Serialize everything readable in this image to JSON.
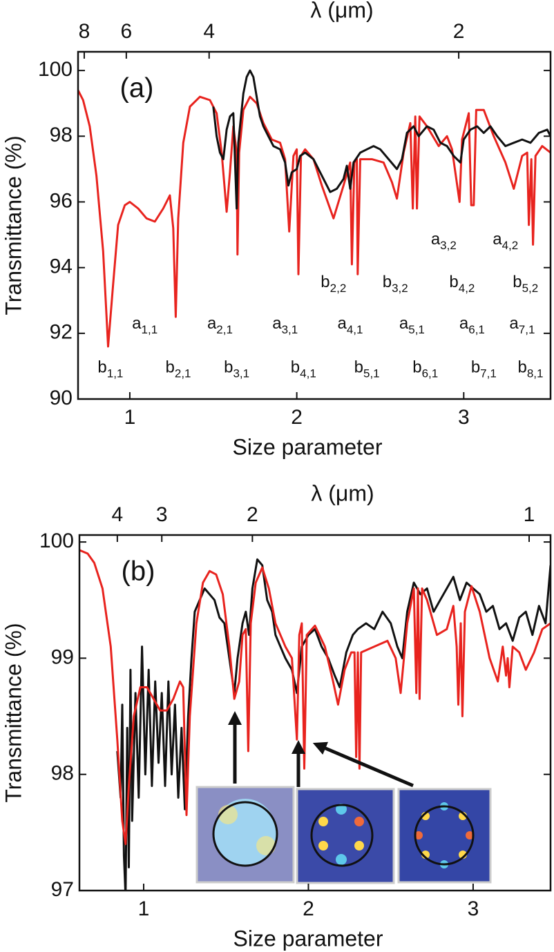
{
  "chart_data": [
    {
      "type": "line",
      "panel": "(a)",
      "xlabel": "Size parameter",
      "ylabel": "Transmittance (%)",
      "x2label": "λ (μm)",
      "xlim": [
        0.69,
        3.52
      ],
      "ylim": [
        90,
        100.57
      ],
      "xticks": [
        1,
        2,
        3
      ],
      "yticks": [
        90,
        92,
        94,
        96,
        98,
        100
      ],
      "x2ticks": [
        {
          "value": 0.727,
          "label": "8"
        },
        {
          "value": 0.979,
          "label": "6"
        },
        {
          "value": 1.475,
          "label": "4"
        },
        {
          "value": 2.97,
          "label": "2"
        }
      ],
      "series": [
        {
          "color": "#e8231e",
          "x": [
            0.69,
            0.72,
            0.76,
            0.8,
            0.84,
            0.87,
            0.9,
            0.93,
            0.97,
            1.0,
            1.05,
            1.1,
            1.15,
            1.2,
            1.24,
            1.26,
            1.275,
            1.29,
            1.32,
            1.36,
            1.42,
            1.48,
            1.52,
            1.55,
            1.58,
            1.6,
            1.62,
            1.64,
            1.645,
            1.655,
            1.68,
            1.72,
            1.76,
            1.8,
            1.85,
            1.9,
            1.93,
            1.955,
            1.98,
            2.0,
            2.01,
            2.025,
            2.05,
            2.1,
            2.15,
            2.22,
            2.28,
            2.32,
            2.33,
            2.345,
            2.36,
            2.365,
            2.38,
            2.45,
            2.52,
            2.57,
            2.6,
            2.64,
            2.68,
            2.695,
            2.71,
            2.72,
            2.735,
            2.78,
            2.85,
            2.9,
            2.93,
            2.975,
            2.99,
            3.03,
            3.045,
            3.06,
            3.075,
            3.12,
            3.18,
            3.25,
            3.3,
            3.35,
            3.38,
            3.39,
            3.405,
            3.415,
            3.43,
            3.47,
            3.52
          ],
          "values": [
            99.4,
            99.1,
            98.3,
            96.8,
            94.5,
            91.6,
            93.5,
            95.3,
            95.9,
            96.0,
            95.8,
            95.5,
            95.4,
            95.8,
            96.2,
            95.2,
            92.5,
            95.5,
            97.8,
            98.9,
            99.2,
            99.1,
            98.7,
            97.5,
            95.7,
            96.9,
            98.3,
            97.5,
            94.4,
            97.5,
            98.8,
            99.2,
            99.0,
            98.4,
            97.9,
            97.8,
            97.3,
            95.1,
            97.4,
            97.6,
            93.8,
            97.4,
            97.6,
            97.3,
            96.5,
            95.5,
            96.5,
            97.2,
            94.1,
            97.2,
            97.3,
            93.8,
            97.3,
            97.3,
            97.2,
            96.6,
            96.1,
            97.5,
            98.4,
            95.8,
            98.6,
            95.8,
            98.6,
            98.3,
            97.7,
            98.0,
            97.6,
            96.0,
            97.9,
            98.7,
            95.9,
            95.9,
            98.8,
            98.8,
            98.0,
            97.2,
            96.4,
            97.4,
            97.5,
            95.3,
            97.3,
            94.7,
            97.4,
            97.7,
            97.5
          ]
        },
        {
          "color": "#111111",
          "x": [
            1.5,
            1.52,
            1.54,
            1.56,
            1.58,
            1.6,
            1.62,
            1.64,
            1.65,
            1.68,
            1.7,
            1.72,
            1.74,
            1.76,
            1.78,
            1.8,
            1.83,
            1.86,
            1.9,
            1.93,
            1.95,
            1.97,
            2.0,
            2.02,
            2.05,
            2.1,
            2.15,
            2.2,
            2.24,
            2.28,
            2.3,
            2.32,
            2.34,
            2.38,
            2.42,
            2.46,
            2.5,
            2.55,
            2.6,
            2.63,
            2.66,
            2.7,
            2.73,
            2.78,
            2.82,
            2.86,
            2.9,
            2.94,
            2.98,
            3.0,
            3.04,
            3.08,
            3.12,
            3.16,
            3.2,
            3.25,
            3.3,
            3.35,
            3.4,
            3.45,
            3.5,
            3.52
          ],
          "values": [
            98.9,
            98.0,
            97.5,
            97.3,
            98.2,
            98.6,
            98.7,
            95.8,
            97.8,
            99.3,
            99.8,
            100.0,
            99.8,
            99.2,
            98.6,
            98.3,
            98.0,
            97.7,
            97.6,
            97.2,
            96.5,
            96.9,
            97.0,
            97.4,
            97.5,
            97.3,
            96.8,
            96.3,
            96.4,
            96.7,
            97.1,
            96.4,
            97.2,
            97.5,
            97.6,
            97.7,
            97.6,
            97.3,
            97.0,
            97.3,
            98.1,
            98.3,
            98.0,
            98.3,
            98.2,
            97.8,
            97.7,
            97.4,
            97.2,
            97.9,
            98.2,
            98.3,
            98.1,
            98.3,
            98.0,
            97.7,
            97.8,
            97.9,
            97.8,
            98.1,
            98.2,
            98.0
          ]
        }
      ],
      "annotations": [
        {
          "text": "b",
          "sub": "1,1",
          "x": 0.884,
          "y": 90.93
        },
        {
          "text": "a",
          "sub": "1,1",
          "x": 1.09,
          "y": 92.27
        },
        {
          "text": "b",
          "sub": "2,1",
          "x": 1.29,
          "y": 90.93
        },
        {
          "text": "a",
          "sub": "2,1",
          "x": 1.54,
          "y": 92.27
        },
        {
          "text": "b",
          "sub": "3,1",
          "x": 1.64,
          "y": 90.93
        },
        {
          "text": "a",
          "sub": "3,1",
          "x": 1.93,
          "y": 92.27
        },
        {
          "text": "b",
          "sub": "4,1",
          "x": 2.04,
          "y": 90.93
        },
        {
          "text": "a",
          "sub": "4,1",
          "x": 2.32,
          "y": 92.27
        },
        {
          "text": "b",
          "sub": "5,1",
          "x": 2.42,
          "y": 90.93
        },
        {
          "text": "a",
          "sub": "5,1",
          "x": 2.69,
          "y": 92.27
        },
        {
          "text": "b",
          "sub": "6,1",
          "x": 2.77,
          "y": 90.93
        },
        {
          "text": "a",
          "sub": "6,1",
          "x": 3.05,
          "y": 92.27
        },
        {
          "text": "b",
          "sub": "7,1",
          "x": 3.12,
          "y": 90.93
        },
        {
          "text": "a",
          "sub": "7,1",
          "x": 3.35,
          "y": 92.27
        },
        {
          "text": "b",
          "sub": "8,1",
          "x": 3.4,
          "y": 90.93
        },
        {
          "text": "b",
          "sub": "2,2",
          "x": 2.22,
          "y": 93.53
        },
        {
          "text": "b",
          "sub": "3,2",
          "x": 2.59,
          "y": 93.53
        },
        {
          "text": "b",
          "sub": "4,2",
          "x": 2.99,
          "y": 93.53
        },
        {
          "text": "b",
          "sub": "5,2",
          "x": 3.37,
          "y": 93.53
        },
        {
          "text": "a",
          "sub": "3,2",
          "x": 2.88,
          "y": 94.83
        },
        {
          "text": "a",
          "sub": "4,2",
          "x": 3.25,
          "y": 94.83
        }
      ]
    },
    {
      "type": "line",
      "panel": "(b)",
      "xlabel": "Size parameter",
      "ylabel": "Transmittance (%)",
      "x2label": "λ (μm)",
      "xlim": [
        0.61,
        3.47
      ],
      "ylim": [
        97,
        100.06
      ],
      "xticks": [
        1,
        2,
        3
      ],
      "yticks": [
        97,
        98,
        99,
        100
      ],
      "x2ticks": [
        {
          "value": 0.84,
          "label": "4"
        },
        {
          "value": 1.11,
          "label": "3"
        },
        {
          "value": 1.66,
          "label": "2"
        },
        {
          "value": 3.34,
          "label": "1"
        }
      ],
      "series": [
        {
          "color": "#111111",
          "x": [
            0.84,
            0.86,
            0.87,
            0.88,
            0.89,
            0.9,
            0.91,
            0.92,
            0.93,
            0.95,
            0.97,
            0.99,
            1.01,
            1.03,
            1.05,
            1.07,
            1.09,
            1.11,
            1.13,
            1.15,
            1.17,
            1.19,
            1.21,
            1.23,
            1.25,
            1.27,
            1.29,
            1.31,
            1.34,
            1.37,
            1.4,
            1.43,
            1.46,
            1.49,
            1.52,
            1.55,
            1.57,
            1.6,
            1.62,
            1.64,
            1.66,
            1.69,
            1.72,
            1.75,
            1.78,
            1.8,
            1.83,
            1.86,
            1.9,
            1.93,
            1.96,
            2.0,
            2.04,
            2.08,
            2.12,
            2.16,
            2.19,
            2.23,
            2.27,
            2.3,
            2.35,
            2.4,
            2.45,
            2.5,
            2.54,
            2.57,
            2.6,
            2.64,
            2.68,
            2.72,
            2.76,
            2.8,
            2.84,
            2.88,
            2.92,
            2.96,
            3.0,
            3.04,
            3.08,
            3.12,
            3.16,
            3.2,
            3.24,
            3.28,
            3.32,
            3.36,
            3.4,
            3.44,
            3.47
          ],
          "values": [
            98.2,
            97.8,
            98.6,
            97.3,
            96.95,
            98.4,
            97.2,
            98.9,
            97.6,
            98.7,
            97.8,
            99.1,
            98.0,
            98.9,
            97.9,
            98.8,
            98.1,
            98.7,
            97.9,
            98.8,
            98.0,
            98.6,
            97.8,
            98.4,
            97.7,
            98.5,
            99.0,
            99.4,
            99.5,
            99.6,
            99.55,
            99.5,
            99.35,
            99.3,
            99.0,
            98.7,
            99.0,
            99.3,
            99.4,
            99.2,
            99.6,
            99.85,
            99.8,
            99.5,
            99.4,
            99.2,
            99.1,
            99.0,
            98.9,
            98.7,
            99.1,
            99.2,
            99.25,
            99.1,
            99.0,
            98.85,
            98.75,
            99.05,
            99.2,
            99.25,
            99.3,
            99.25,
            99.4,
            99.3,
            99.1,
            99.0,
            99.4,
            99.65,
            99.55,
            99.6,
            99.4,
            99.5,
            99.6,
            99.7,
            99.5,
            99.65,
            99.6,
            99.55,
            99.4,
            99.45,
            99.25,
            99.3,
            99.15,
            99.35,
            99.4,
            99.2,
            99.45,
            99.3,
            99.8
          ]
        },
        {
          "color": "#e8231e",
          "x": [
            0.61,
            0.66,
            0.7,
            0.75,
            0.8,
            0.84,
            0.87,
            0.89,
            0.91,
            0.94,
            0.98,
            1.02,
            1.06,
            1.1,
            1.14,
            1.18,
            1.22,
            1.24,
            1.26,
            1.28,
            1.32,
            1.36,
            1.4,
            1.44,
            1.48,
            1.52,
            1.55,
            1.58,
            1.6,
            1.62,
            1.635,
            1.65,
            1.68,
            1.72,
            1.76,
            1.8,
            1.86,
            1.9,
            1.93,
            1.945,
            1.96,
            1.975,
            1.99,
            2.04,
            2.1,
            2.15,
            2.18,
            2.22,
            2.26,
            2.28,
            2.29,
            2.3,
            2.31,
            2.32,
            2.4,
            2.48,
            2.53,
            2.56,
            2.6,
            2.64,
            2.655,
            2.665,
            2.675,
            2.69,
            2.72,
            2.78,
            2.84,
            2.88,
            2.9,
            2.91,
            2.925,
            2.935,
            2.95,
            2.99,
            3.04,
            3.1,
            3.15,
            3.18,
            3.2,
            3.21,
            3.22,
            3.24,
            3.28,
            3.32,
            3.37,
            3.42,
            3.47
          ],
          "values": [
            99.93,
            99.9,
            99.82,
            99.6,
            99.1,
            98.3,
            97.6,
            97.4,
            97.9,
            98.5,
            98.75,
            98.75,
            98.65,
            98.55,
            98.55,
            98.65,
            98.8,
            98.75,
            97.65,
            98.5,
            99.3,
            99.65,
            99.75,
            99.72,
            99.55,
            99.1,
            98.65,
            98.8,
            99.2,
            99.25,
            98.2,
            99.3,
            99.65,
            99.78,
            99.6,
            99.3,
            99.1,
            99.0,
            98.3,
            99.2,
            99.3,
            98.05,
            99.2,
            99.28,
            99.1,
            98.8,
            98.6,
            98.9,
            99.05,
            99.05,
            98.15,
            99.05,
            98.05,
            99.05,
            99.1,
            99.15,
            99.0,
            98.7,
            99.3,
            99.6,
            98.7,
            99.6,
            98.65,
            99.6,
            99.5,
            99.2,
            99.25,
            99.45,
            99.1,
            98.6,
            99.3,
            98.5,
            99.4,
            99.62,
            99.4,
            99.0,
            98.8,
            99.1,
            98.85,
            99.0,
            98.75,
            99.1,
            99.05,
            98.9,
            99.05,
            99.25,
            99.3
          ]
        }
      ],
      "annotations": []
    }
  ]
}
